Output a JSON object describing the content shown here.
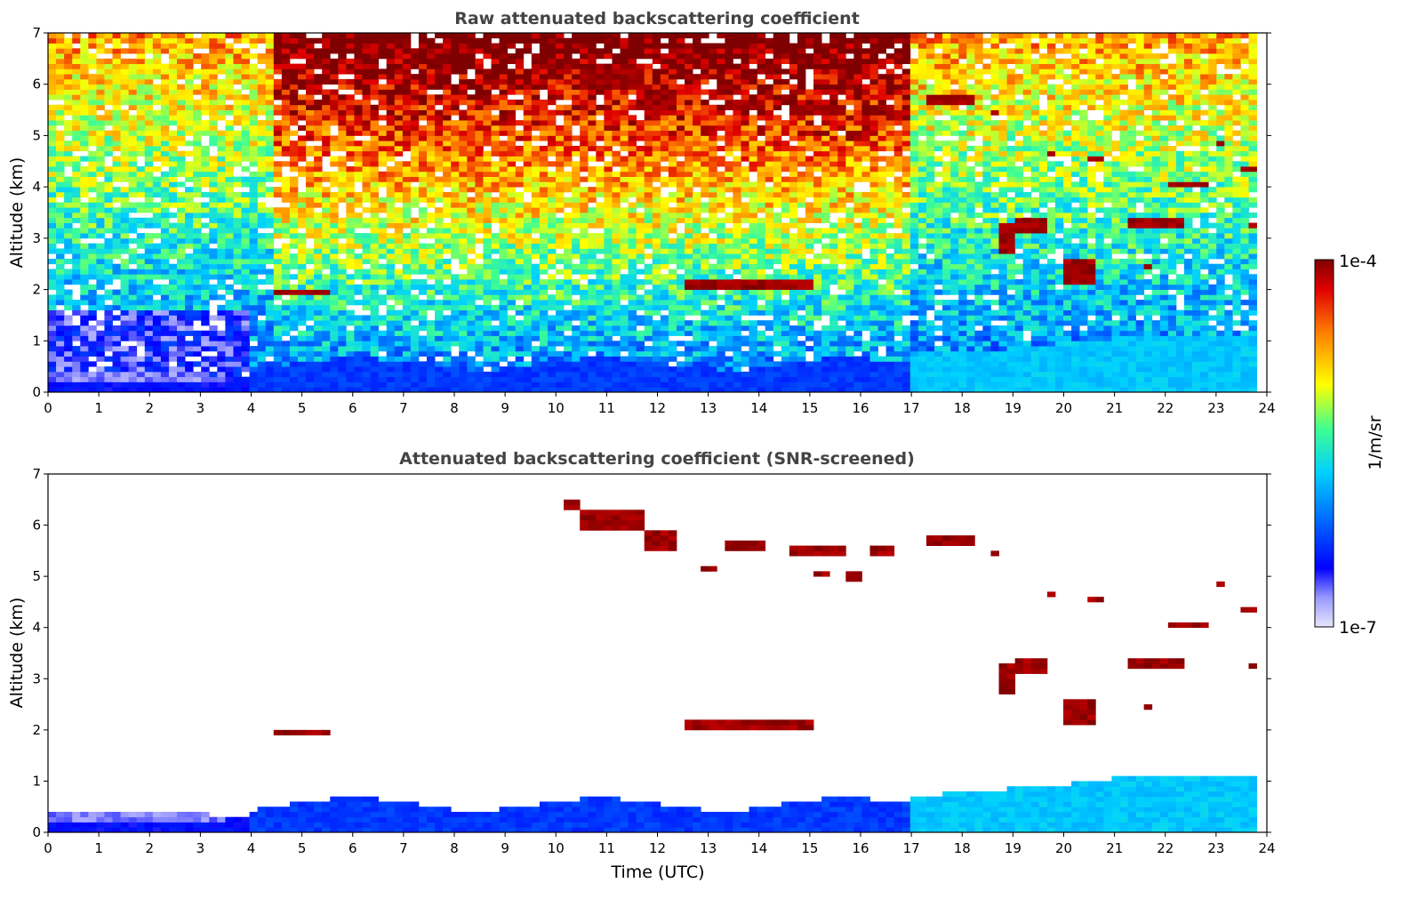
{
  "chart_data": [
    {
      "type": "heatmap",
      "title": "Raw attenuated backscattering coefficient",
      "xlabel": "",
      "ylabel": "Altitude (km)",
      "xlim": [
        0,
        24
      ],
      "ylim": [
        0,
        7
      ],
      "xticks": [
        "0",
        "1",
        "2",
        "3",
        "4",
        "5",
        "6",
        "7",
        "8",
        "9",
        "10",
        "11",
        "12",
        "13",
        "14",
        "15",
        "16",
        "17",
        "18",
        "19",
        "20",
        "21",
        "22",
        "23",
        "24"
      ],
      "yticks": [
        "0",
        "1",
        "2",
        "3",
        "4",
        "5",
        "6",
        "7"
      ],
      "data_end_time": 23.8,
      "screened": false
    },
    {
      "type": "heatmap",
      "title": "Attenuated backscattering coefficient (SNR-screened)",
      "xlabel": "Time (UTC)",
      "ylabel": "Altitude (km)",
      "xlim": [
        0,
        24
      ],
      "ylim": [
        0,
        7
      ],
      "xticks": [
        "0",
        "1",
        "2",
        "3",
        "4",
        "5",
        "6",
        "7",
        "8",
        "9",
        "10",
        "11",
        "12",
        "13",
        "14",
        "15",
        "16",
        "17",
        "18",
        "19",
        "20",
        "21",
        "22",
        "23",
        "24"
      ],
      "yticks": [
        "0",
        "1",
        "2",
        "3",
        "4",
        "5",
        "6",
        "7"
      ],
      "data_end_time": 23.8,
      "screened": true
    }
  ],
  "colorbar": {
    "label": "1/m/sr",
    "max_label": "1e-4",
    "min_label": "1e-7",
    "scale": "log",
    "colormap": "jet",
    "colors": [
      "#e6e6fa",
      "#0000ff",
      "#00c8ff",
      "#00ff80",
      "#ffff00",
      "#ff8000",
      "#e00000",
      "#7f0000"
    ]
  }
}
